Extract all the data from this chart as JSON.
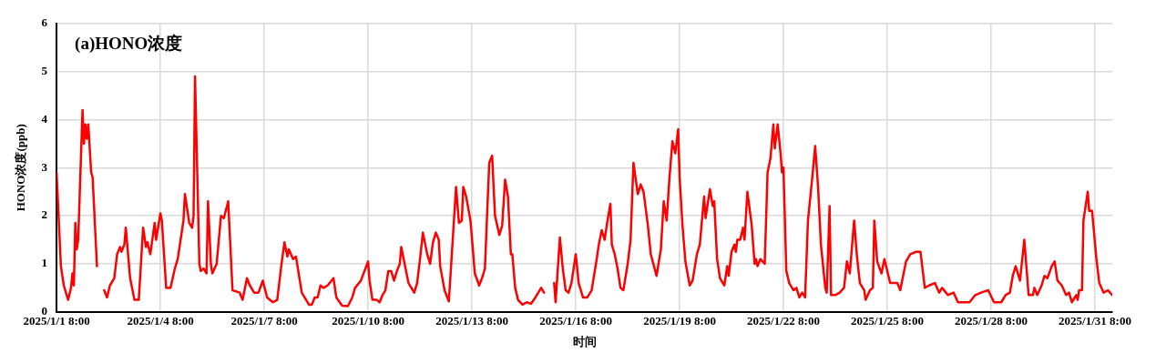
{
  "chart_data": {
    "type": "line",
    "title": "(a)HONO浓度",
    "xlabel": "时间",
    "ylabel": "HONO浓度(ppb)",
    "x": [
      "2025-01-01T08:00",
      "2025-01-01T11:00",
      "2025-01-01T13:00",
      "2025-01-01T16:00",
      "2025-01-01T18:00",
      "2025-01-01T19:00",
      "2025-01-01T20:00",
      "2025-01-01T21:00",
      "2025-01-01T22:00",
      "2025-01-01T23:00",
      "2025-01-02T02:00",
      "2025-01-02T03:00",
      "2025-01-02T04:00",
      "2025-01-02T05:00",
      "2025-01-02T06:00",
      "2025-01-02T08:00",
      "2025-01-02T09:00",
      "2025-01-02T12:00",
      "2025-01-02T14:00",
      "2025-01-02T17:00",
      "2025-01-02T19:00",
      "2025-01-02T21:00",
      "2025-01-03T00:00",
      "2025-01-03T02:00",
      "2025-01-03T04:00",
      "2025-01-03T05:00",
      "2025-01-03T07:00",
      "2025-01-03T08:00",
      "2025-01-03T11:00",
      "2025-01-03T14:00",
      "2025-01-03T17:00",
      "2025-01-03T20:00",
      "2025-01-03T22:00",
      "2025-01-03T23:00",
      "2025-01-04T01:00",
      "2025-01-04T04:00",
      "2025-01-04T05:00",
      "2025-01-04T08:00",
      "2025-01-04T09:00",
      "2025-01-04T12:00",
      "2025-01-04T15:00",
      "2025-01-04T18:00",
      "2025-01-04T20:00",
      "2025-01-04T22:00",
      "2025-01-05T00:00",
      "2025-01-05T01:00",
      "2025-01-05T04:00",
      "2025-01-05T06:00",
      "2025-01-05T07:00",
      "2025-01-05T08:00",
      "2025-01-05T11:00",
      "2025-01-05T12:00",
      "2025-01-05T14:00",
      "2025-01-05T16:00",
      "2025-01-05T17:00",
      "2025-01-05T19:00",
      "2025-01-05T20:00",
      "2025-01-05T23:00",
      "2025-01-06T02:00",
      "2025-01-06T04:00",
      "2025-01-06T07:00",
      "2025-01-06T10:00",
      "2025-01-06T15:00",
      "2025-01-06T17:00",
      "2025-01-06T20:00",
      "2025-01-06T22:00",
      "2025-01-07T01:00",
      "2025-01-07T04:00",
      "2025-01-07T07:00",
      "2025-01-07T10:00",
      "2025-01-07T14:00",
      "2025-01-07T17:00",
      "2025-01-07T20:00",
      "2025-01-07T22:00",
      "2025-01-08T00:00",
      "2025-01-08T01:00",
      "2025-01-08T04:00",
      "2025-01-08T06:00",
      "2025-01-08T10:00",
      "2025-01-08T15:00",
      "2025-01-08T17:00",
      "2025-01-08T19:00",
      "2025-01-08T21:00",
      "2025-01-08T23:00",
      "2025-01-09T01:00",
      "2025-01-09T04:00",
      "2025-01-09T08:00",
      "2025-01-09T10:00",
      "2025-01-09T14:00",
      "2025-01-09T18:00",
      "2025-01-09T21:00",
      "2025-01-09T23:00",
      "2025-01-10T03:00",
      "2025-01-10T08:00",
      "2025-01-10T09:00",
      "2025-01-10T11:00",
      "2025-01-10T14:00",
      "2025-01-10T16:00",
      "2025-01-10T18:00",
      "2025-01-10T20:00",
      "2025-01-10T22:00",
      "2025-01-11T00:00",
      "2025-01-11T02:00",
      "2025-01-11T04:00",
      "2025-01-11T06:00",
      "2025-01-11T07:00",
      "2025-01-11T09:00",
      "2025-01-11T12:00",
      "2025-01-11T16:00",
      "2025-01-11T18:00",
      "2025-01-11T20:00",
      "2025-01-11T22:00",
      "2025-01-12T01:00",
      "2025-01-12T03:00",
      "2025-01-12T05:00",
      "2025-01-12T07:00",
      "2025-01-12T09:00",
      "2025-01-12T10:00",
      "2025-01-12T13:00",
      "2025-01-12T16:00",
      "2025-01-12T21:00",
      "2025-01-12T23:00",
      "2025-01-13T01:00",
      "2025-01-13T02:00",
      "2025-01-13T04:00",
      "2025-01-13T07:00",
      "2025-01-13T10:00",
      "2025-01-13T13:00",
      "2025-01-13T15:00",
      "2025-01-13T17:00",
      "2025-01-13T20:00",
      "2025-01-13T22:00",
      "2025-01-14T00:00",
      "2025-01-14T03:00",
      "2025-01-14T05:00",
      "2025-01-14T07:00",
      "2025-01-14T09:00",
      "2025-01-14T11:00",
      "2025-01-14T12:00",
      "2025-01-14T14:00",
      "2025-01-14T16:00",
      "2025-01-14T19:00",
      "2025-01-14T22:00",
      "2025-01-15T01:00",
      "2025-01-15T04:00",
      "2025-01-15T06:00",
      "2025-01-15T08:00",
      "2025-01-15T10:00",
      "2025-01-15T13:00",
      "2025-01-15T17:00",
      "2025-01-15T18:00",
      "2025-01-15T21:00",
      "2025-01-15T23:00",
      "2025-01-16T01:00",
      "2025-01-16T03:00",
      "2025-01-16T05:00",
      "2025-01-16T08:00",
      "2025-01-16T10:00",
      "2025-01-16T13:00",
      "2025-01-16T16:00",
      "2025-01-16T19:00",
      "2025-01-16T22:00",
      "2025-01-17T00:00",
      "2025-01-17T02:00",
      "2025-01-17T04:00",
      "2025-01-17T06:00",
      "2025-01-17T08:00",
      "2025-01-17T09:00",
      "2025-01-17T11:00",
      "2025-01-17T13:00",
      "2025-01-17T15:00",
      "2025-01-17T17:00",
      "2025-01-17T20:00",
      "2025-01-17T22:00",
      "2025-01-18T00:00",
      "2025-01-18T03:00",
      "2025-01-18T05:00",
      "2025-01-18T07:00",
      "2025-01-18T10:00",
      "2025-01-18T12:00",
      "2025-01-18T16:00",
      "2025-01-18T19:00",
      "2025-01-18T21:00",
      "2025-01-18T23:00",
      "2025-01-19T01:00",
      "2025-01-19T03:00",
      "2025-01-19T05:00",
      "2025-01-19T07:00",
      "2025-01-19T08:00",
      "2025-01-19T10:00",
      "2025-01-19T12:00",
      "2025-01-19T15:00",
      "2025-01-19T17:00",
      "2025-01-19T20:00",
      "2025-01-19T22:00",
      "2025-01-20T01:00",
      "2025-01-20T02:00",
      "2025-01-20T05:00",
      "2025-01-20T07:00",
      "2025-01-20T08:00",
      "2025-01-20T10:00",
      "2025-01-20T12:00",
      "2025-01-20T15:00",
      "2025-01-20T17:00",
      "2025-01-20T18:00",
      "2025-01-20T20:00",
      "2025-01-20T22:00",
      "2025-01-20T23:00",
      "2025-01-21T00:00",
      "2025-01-21T02:00",
      "2025-01-21T04:00",
      "2025-01-21T05:00",
      "2025-01-21T07:00",
      "2025-01-21T10:00",
      "2025-01-21T12:00",
      "2025-01-21T13:00",
      "2025-01-21T14:00",
      "2025-01-21T16:00",
      "2025-01-21T19:00",
      "2025-01-21T21:00",
      "2025-01-21T23:00",
      "2025-01-22T01:00",
      "2025-01-22T02:00",
      "2025-01-22T04:00",
      "2025-01-22T06:00",
      "2025-01-22T07:00",
      "2025-01-22T08:00",
      "2025-01-22T10:00",
      "2025-01-22T12:00",
      "2025-01-22T15:00",
      "2025-01-22T17:00",
      "2025-01-22T19:00",
      "2025-01-22T21:00",
      "2025-01-22T23:00",
      "2025-01-23T01:00",
      "2025-01-23T04:00",
      "2025-01-23T06:00",
      "2025-01-23T08:00",
      "2025-01-23T10:00",
      "2025-01-23T13:00",
      "2025-01-23T14:00",
      "2025-01-23T16:00",
      "2025-01-23T17:00",
      "2025-01-23T20:00",
      "2025-01-23T23:00",
      "2025-01-24T02:00",
      "2025-01-24T04:00",
      "2025-01-24T06:00",
      "2025-01-24T09:00",
      "2025-01-24T11:00",
      "2025-01-24T13:00",
      "2025-01-24T16:00",
      "2025-01-24T17:00",
      "2025-01-24T20:00",
      "2025-01-24T22:00",
      "2025-01-24T23:00",
      "2025-01-25T01:00",
      "2025-01-25T04:00",
      "2025-01-25T06:00",
      "2025-01-25T10:00",
      "2025-01-25T13:00",
      "2025-01-25T15:00",
      "2025-01-25T17:00",
      "2025-01-25T21:00",
      "2025-01-26T00:00",
      "2025-01-26T04:00",
      "2025-01-26T07:00",
      "2025-01-26T10:00",
      "2025-01-26T13:00",
      "2025-01-26T17:00",
      "2025-01-26T20:00",
      "2025-01-26T22:00",
      "2025-01-27T02:00",
      "2025-01-27T06:00",
      "2025-01-27T09:00",
      "2025-01-27T13:00",
      "2025-01-27T17:00",
      "2025-01-27T21:00",
      "2025-01-28T01:00",
      "2025-01-28T06:00",
      "2025-01-28T10:00",
      "2025-01-28T15:00",
      "2025-01-28T18:00",
      "2025-01-28T21:00",
      "2025-01-28T23:00",
      "2025-01-29T01:00",
      "2025-01-29T04:00",
      "2025-01-29T07:00",
      "2025-01-29T10:00",
      "2025-01-29T13:00",
      "2025-01-29T14:00",
      "2025-01-29T16:00",
      "2025-01-29T19:00",
      "2025-01-29T21:00",
      "2025-01-29T23:00",
      "2025-01-30T02:00",
      "2025-01-30T04:00",
      "2025-01-30T06:00",
      "2025-01-30T09:00",
      "2025-01-30T12:00",
      "2025-01-30T14:00",
      "2025-01-30T16:00",
      "2025-01-30T19:00",
      "2025-01-30T20:00",
      "2025-01-30T21:00",
      "2025-01-30T23:00",
      "2025-01-31T00:00",
      "2025-01-31T03:00",
      "2025-01-31T04:00",
      "2025-01-31T06:00",
      "2025-01-31T09:00",
      "2025-01-31T11:00",
      "2025-01-31T14:00",
      "2025-01-31T17:00",
      "2025-01-31T20:00"
    ],
    "series": [
      {
        "color": "#ff0000",
        "values": [
          2.9,
          0.95,
          0.55,
          0.25,
          0.5,
          0.8,
          0.55,
          1.85,
          1.3,
          1.5,
          4.2,
          3.5,
          3.9,
          3.6,
          3.9,
          2.9,
          2.8,
          0.95,
          null,
          0.45,
          0.3,
          0.55,
          0.7,
          1.2,
          1.35,
          1.25,
          1.4,
          1.75,
          0.7,
          0.25,
          0.25,
          1.75,
          1.35,
          1.45,
          1.2,
          1.85,
          1.5,
          2.05,
          1.9,
          0.5,
          0.5,
          0.9,
          1.1,
          1.5,
          1.9,
          2.45,
          1.85,
          1.75,
          2.0,
          4.9,
          1.0,
          0.85,
          0.9,
          0.8,
          2.3,
          1.0,
          0.8,
          1.0,
          2.0,
          1.95,
          2.3,
          0.45,
          0.4,
          0.25,
          0.7,
          0.55,
          0.4,
          0.4,
          0.65,
          0.3,
          0.2,
          0.25,
          1.0,
          1.45,
          1.15,
          1.3,
          1.1,
          1.15,
          0.4,
          0.15,
          0.15,
          0.3,
          0.3,
          0.55,
          0.5,
          0.55,
          0.7,
          0.3,
          0.13,
          0.12,
          0.3,
          0.5,
          0.65,
          1.05,
          0.65,
          0.25,
          0.25,
          0.2,
          0.35,
          0.45,
          0.85,
          0.85,
          0.65,
          0.85,
          1.0,
          1.35,
          1.05,
          0.6,
          0.4,
          0.6,
          1.1,
          1.65,
          1.2,
          1.0,
          1.45,
          1.65,
          1.5,
          0.95,
          0.45,
          0.22,
          2.6,
          1.85,
          1.9,
          2.6,
          2.4,
          1.9,
          0.8,
          0.55,
          0.7,
          0.9,
          3.1,
          3.25,
          2.0,
          1.6,
          1.8,
          2.75,
          2.4,
          1.2,
          1.2,
          0.5,
          0.25,
          0.15,
          0.2,
          0.17,
          0.3,
          0.4,
          0.5,
          0.4,
          null,
          0.6,
          0.2,
          1.55,
          0.9,
          0.45,
          0.4,
          0.6,
          1.2,
          0.6,
          0.3,
          0.3,
          0.45,
          1.0,
          1.4,
          1.7,
          1.5,
          1.9,
          2.25,
          1.4,
          1.2,
          0.9,
          0.5,
          0.45,
          1.0,
          1.5,
          3.1,
          2.45,
          2.65,
          2.5,
          1.8,
          1.2,
          0.75,
          1.3,
          2.3,
          1.9,
          2.8,
          3.55,
          3.3,
          3.8,
          2.8,
          1.8,
          1.05,
          0.55,
          0.65,
          1.2,
          1.4,
          2.4,
          1.95,
          2.55,
          2.2,
          2.3,
          1.1,
          0.7,
          0.55,
          0.95,
          0.75,
          1.25,
          1.4,
          1.25,
          1.5,
          1.5,
          1.75,
          1.5,
          2.5,
          1.8,
          1.0,
          1.1,
          0.95,
          1.1,
          1.0,
          2.9,
          3.2,
          3.9,
          3.4,
          3.9,
          3.3,
          2.9,
          3.0,
          0.85,
          0.6,
          0.45,
          0.5,
          0.3,
          0.4,
          0.3,
          1.9,
          2.8,
          3.45,
          2.6,
          1.4,
          0.5,
          0.4,
          2.2,
          0.35,
          0.35,
          0.4,
          0.5,
          1.05,
          0.8,
          1.9,
          1.15,
          0.6,
          0.45,
          0.25,
          0.45,
          0.5,
          1.9,
          1.05,
          0.8,
          1.1,
          0.6,
          0.6,
          0.6,
          0.45,
          1.05,
          1.2,
          1.25,
          1.25,
          0.5,
          0.55,
          0.6,
          0.4,
          0.5,
          0.35,
          0.4,
          0.2,
          0.2,
          0.2,
          0.35,
          0.4,
          0.45,
          0.2,
          0.2,
          0.35,
          0.4,
          0.75,
          0.95,
          0.65,
          1.5,
          0.35,
          0.35,
          0.5,
          0.35,
          0.55,
          0.75,
          0.7,
          0.95,
          1.05,
          0.65,
          0.55,
          0.35,
          0.4,
          0.2,
          0.35,
          0.25,
          0.45,
          0.45,
          1.9,
          2.5,
          2.1,
          2.1,
          1.1,
          0.6,
          0.4,
          0.45,
          0.35
        ]
      }
    ],
    "xlim": [
      "2025-01-01T08:00",
      "2025-01-31T20:00"
    ],
    "xticks": [
      {
        "value": "2025-01-01T08:00",
        "label": "2025/1/1 8:00"
      },
      {
        "value": "2025-01-04T08:00",
        "label": "2025/1/4 8:00"
      },
      {
        "value": "2025-01-07T08:00",
        "label": "2025/1/7 8:00"
      },
      {
        "value": "2025-01-10T08:00",
        "label": "2025/1/10 8:00"
      },
      {
        "value": "2025-01-13T08:00",
        "label": "2025/1/13 8:00"
      },
      {
        "value": "2025-01-16T08:00",
        "label": "2025/1/16 8:00"
      },
      {
        "value": "2025-01-19T08:00",
        "label": "2025/1/19 8:00"
      },
      {
        "value": "2025-01-22T08:00",
        "label": "2025/1/22 8:00"
      },
      {
        "value": "2025-01-25T08:00",
        "label": "2025/1/25 8:00"
      },
      {
        "value": "2025-01-28T08:00",
        "label": "2025/1/28 8:00"
      },
      {
        "value": "2025-01-31T08:00",
        "label": "2025/1/31 8:00"
      }
    ],
    "ylim": [
      0,
      6
    ],
    "yticks": [
      0,
      1,
      2,
      3,
      4,
      5,
      6
    ],
    "grid": true,
    "legend": false,
    "marker": "none",
    "line_style": "solid"
  }
}
